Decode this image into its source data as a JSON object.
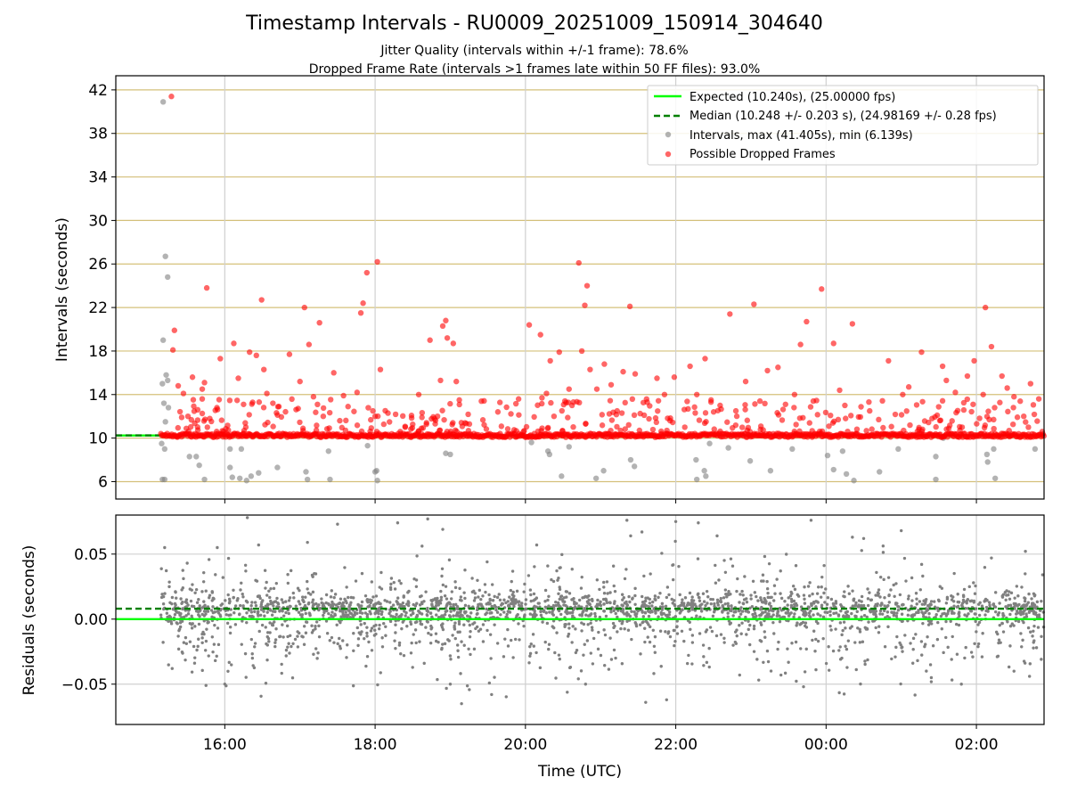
{
  "header": {
    "title": "Timestamp Intervals - RU0009_20251009_150914_304640",
    "subtitle1": "Jitter Quality (intervals within +/-1 frame): 78.6%",
    "subtitle2": "Dropped Frame Rate (intervals >1 frames late within 50 FF files): 93.0%"
  },
  "chart_data": [
    {
      "type": "scatter",
      "panel": "top",
      "ylabel": "Intervals (seconds)",
      "xlabel": "",
      "xlim_hours": [
        14.55,
        26.9
      ],
      "ylim": [
        4.4,
        43.3
      ],
      "yticks": [
        6,
        10,
        14,
        18,
        22,
        26,
        30,
        34,
        38,
        42
      ],
      "grid": true,
      "legend_position": "top-right",
      "legend": [
        "Expected (10.240s), (25.00000 fps)",
        "Median (10.248 +/- 0.203 s), (24.98169 +/- 0.28 fps)",
        "Intervals, max (41.405s), min (6.139s)",
        "Possible Dropped Frames"
      ],
      "expected_interval": 10.24,
      "median_interval": 10.248,
      "baseline_band": {
        "x_range": [
          15.15,
          26.9
        ],
        "y": 10.25,
        "color": "red"
      },
      "series": [
        {
          "name": "Intervals, max (41.405s), min (6.139s)",
          "color": "#808080",
          "points": [
            [
              15.18,
              40.9
            ],
            [
              15.21,
              26.7
            ],
            [
              15.24,
              24.8
            ],
            [
              15.18,
              19.0
            ],
            [
              15.22,
              15.8
            ],
            [
              15.17,
              15.0
            ],
            [
              15.24,
              15.3
            ],
            [
              15.19,
              13.2
            ],
            [
              15.25,
              12.8
            ],
            [
              15.21,
              11.5
            ],
            [
              15.16,
              9.5
            ],
            [
              15.2,
              9.0
            ],
            [
              15.17,
              6.2
            ],
            [
              15.2,
              6.2
            ],
            [
              15.53,
              8.3
            ],
            [
              15.62,
              8.3
            ],
            [
              15.66,
              7.5
            ],
            [
              15.73,
              6.2
            ],
            [
              16.07,
              7.3
            ],
            [
              16.1,
              6.4
            ],
            [
              16.2,
              6.3
            ],
            [
              16.29,
              6.1
            ],
            [
              16.35,
              6.5
            ],
            [
              16.45,
              6.8
            ],
            [
              16.07,
              9.0
            ],
            [
              16.22,
              9.0
            ],
            [
              16.7,
              7.3
            ],
            [
              17.08,
              6.9
            ],
            [
              17.1,
              6.2
            ],
            [
              17.4,
              6.2
            ],
            [
              17.38,
              8.8
            ],
            [
              17.9,
              9.3
            ],
            [
              18.02,
              7.0
            ],
            [
              18.03,
              6.1
            ],
            [
              18.0,
              6.9
            ],
            [
              18.94,
              8.6
            ],
            [
              19.0,
              8.5
            ],
            [
              20.08,
              9.6
            ],
            [
              20.3,
              8.8
            ],
            [
              20.32,
              8.5
            ],
            [
              20.48,
              6.5
            ],
            [
              20.58,
              9.2
            ],
            [
              20.94,
              6.3
            ],
            [
              21.04,
              7.0
            ],
            [
              21.4,
              8.0
            ],
            [
              21.45,
              7.4
            ],
            [
              22.27,
              8.0
            ],
            [
              22.28,
              6.2
            ],
            [
              22.38,
              7.0
            ],
            [
              22.4,
              6.5
            ],
            [
              22.45,
              9.5
            ],
            [
              22.7,
              9.1
            ],
            [
              22.99,
              7.9
            ],
            [
              23.26,
              7.0
            ],
            [
              23.55,
              9.0
            ],
            [
              24.02,
              8.4
            ],
            [
              24.1,
              7.1
            ],
            [
              24.22,
              8.8
            ],
            [
              24.27,
              6.7
            ],
            [
              24.37,
              6.1
            ],
            [
              24.71,
              6.9
            ],
            [
              24.96,
              9.0
            ],
            [
              25.46,
              8.3
            ],
            [
              25.46,
              6.2
            ],
            [
              25.56,
              10.0
            ],
            [
              26.14,
              8.5
            ],
            [
              26.23,
              9.0
            ],
            [
              26.25,
              6.3
            ],
            [
              26.15,
              7.8
            ],
            [
              26.78,
              9.0
            ]
          ]
        },
        {
          "name": "Possible Dropped Frames",
          "color": "#ff0000",
          "points": [
            [
              15.29,
              41.4
            ],
            [
              15.33,
              19.9
            ],
            [
              15.31,
              18.1
            ],
            [
              15.38,
              14.8
            ],
            [
              15.45,
              14.1
            ],
            [
              15.51,
              12.0
            ],
            [
              15.57,
              15.6
            ],
            [
              15.64,
              12.6
            ],
            [
              15.7,
              14.5
            ],
            [
              15.73,
              15.1
            ],
            [
              15.76,
              23.8
            ],
            [
              15.8,
              11.8
            ],
            [
              15.94,
              17.3
            ],
            [
              16.12,
              18.7
            ],
            [
              16.18,
              15.5
            ],
            [
              16.25,
              13.1
            ],
            [
              16.28,
              11.0
            ],
            [
              16.33,
              17.9
            ],
            [
              16.42,
              17.6
            ],
            [
              16.49,
              22.7
            ],
            [
              16.52,
              16.3
            ],
            [
              16.56,
              14.1
            ],
            [
              16.64,
              13.2
            ],
            [
              16.72,
              12.9
            ],
            [
              16.86,
              17.7
            ],
            [
              17.0,
              15.2
            ],
            [
              17.06,
              22.0
            ],
            [
              17.12,
              18.6
            ],
            [
              17.18,
              13.8
            ],
            [
              17.26,
              20.6
            ],
            [
              17.31,
              12.0
            ],
            [
              17.45,
              16.0
            ],
            [
              17.53,
              11.6
            ],
            [
              17.58,
              13.9
            ],
            [
              17.64,
              12.9
            ],
            [
              17.76,
              14.2
            ],
            [
              17.81,
              21.5
            ],
            [
              17.84,
              22.4
            ],
            [
              17.89,
              25.2
            ],
            [
              17.97,
              12.5
            ],
            [
              18.0,
              12.0
            ],
            [
              18.03,
              26.2
            ],
            [
              18.07,
              16.3
            ],
            [
              18.4,
              11.0
            ],
            [
              18.58,
              14.0
            ],
            [
              18.73,
              19.0
            ],
            [
              18.83,
              12.0
            ],
            [
              18.87,
              15.3
            ],
            [
              18.9,
              20.3
            ],
            [
              18.94,
              20.8
            ],
            [
              18.96,
              19.2
            ],
            [
              19.04,
              18.7
            ],
            [
              19.08,
              15.2
            ],
            [
              19.12,
              13.5
            ],
            [
              20.05,
              20.4
            ],
            [
              20.22,
              13.7
            ],
            [
              20.2,
              19.5
            ],
            [
              20.28,
              14.1
            ],
            [
              20.33,
              17.1
            ],
            [
              20.38,
              12.0
            ],
            [
              20.45,
              17.9
            ],
            [
              20.58,
              14.5
            ],
            [
              20.62,
              13.0
            ],
            [
              20.71,
              26.1
            ],
            [
              20.75,
              18.0
            ],
            [
              20.79,
              22.2
            ],
            [
              20.82,
              24.0
            ],
            [
              20.86,
              16.3
            ],
            [
              20.95,
              14.5
            ],
            [
              21.05,
              16.8
            ],
            [
              21.14,
              14.9
            ],
            [
              21.22,
              12.5
            ],
            [
              21.3,
              16.1
            ],
            [
              21.39,
              22.1
            ],
            [
              21.46,
              15.9
            ],
            [
              21.58,
              12.1
            ],
            [
              21.75,
              15.5
            ],
            [
              21.85,
              14.0
            ],
            [
              21.98,
              15.6
            ],
            [
              22.12,
              11.0
            ],
            [
              22.19,
              16.6
            ],
            [
              22.28,
              14.0
            ],
            [
              22.39,
              17.3
            ],
            [
              22.47,
              13.5
            ],
            [
              22.59,
              13.0
            ],
            [
              22.72,
              21.4
            ],
            [
              22.8,
              12.5
            ],
            [
              22.93,
              15.2
            ],
            [
              23.04,
              22.3
            ],
            [
              23.12,
              13.4
            ],
            [
              23.22,
              16.2
            ],
            [
              23.36,
              16.5
            ],
            [
              23.46,
              13.1
            ],
            [
              23.58,
              14.0
            ],
            [
              23.66,
              18.6
            ],
            [
              23.74,
              20.7
            ],
            [
              23.83,
              13.4
            ],
            [
              23.94,
              23.7
            ],
            [
              24.1,
              18.7
            ],
            [
              24.18,
              14.4
            ],
            [
              24.25,
              13.0
            ],
            [
              24.35,
              20.5
            ],
            [
              24.58,
              12.5
            ],
            [
              24.7,
              11.7
            ],
            [
              24.83,
              17.1
            ],
            [
              25.02,
              14.0
            ],
            [
              25.1,
              14.7
            ],
            [
              25.27,
              17.9
            ],
            [
              25.41,
              11.8
            ],
            [
              25.55,
              16.6
            ],
            [
              25.6,
              15.3
            ],
            [
              25.72,
              14.2
            ],
            [
              25.81,
              11.0
            ],
            [
              25.88,
              15.7
            ],
            [
              25.97,
              17.1
            ],
            [
              26.09,
              14.0
            ],
            [
              26.12,
              22.0
            ],
            [
              26.2,
              18.4
            ],
            [
              26.34,
              15.7
            ],
            [
              26.41,
              14.6
            ],
            [
              26.5,
              13.8
            ],
            [
              26.63,
              12.0
            ],
            [
              26.72,
              15.0
            ],
            [
              26.83,
              13.6
            ]
          ]
        }
      ]
    },
    {
      "type": "scatter",
      "panel": "bottom",
      "ylabel": "Residuals (seconds)",
      "xlabel": "Time (UTC)",
      "xlim_hours": [
        14.55,
        26.9
      ],
      "ylim": [
        -0.081,
        0.08
      ],
      "yticks": [
        0.05,
        0.0,
        -0.05
      ],
      "ytick_labels": [
        "0.05",
        "0.00",
        "−0.05"
      ],
      "xticks_hours": [
        16,
        18,
        20,
        22,
        24,
        26
      ],
      "xtick_labels": [
        "16:00",
        "18:00",
        "20:00",
        "22:00",
        "00:00",
        "02:00"
      ],
      "grid": true,
      "expected_residual": 0.0,
      "median_residual": 0.008,
      "series": [
        {
          "name": "Residuals",
          "color": "#808080",
          "x_range_hours": [
            15.15,
            26.9
          ],
          "points": [
            [
              15.2,
              0.055
            ],
            [
              15.3,
              -0.038
            ],
            [
              15.5,
              0.043
            ],
            [
              15.75,
              -0.051
            ],
            [
              15.9,
              0.055
            ],
            [
              16.3,
              0.078
            ],
            [
              16.45,
              0.057
            ],
            [
              17.1,
              0.059
            ],
            [
              17.5,
              0.073
            ],
            [
              18.3,
              0.074
            ],
            [
              18.7,
              0.077
            ],
            [
              18.9,
              0.069
            ],
            [
              19.0,
              -0.05
            ],
            [
              19.15,
              -0.065
            ],
            [
              19.55,
              -0.058
            ],
            [
              20.15,
              0.057
            ],
            [
              20.8,
              -0.05
            ],
            [
              21.2,
              -0.03
            ],
            [
              21.35,
              0.076
            ],
            [
              21.4,
              0.064
            ],
            [
              21.55,
              0.067
            ],
            [
              21.6,
              -0.064
            ],
            [
              22.0,
              0.075
            ],
            [
              22.3,
              0.074
            ],
            [
              22.55,
              0.064
            ],
            [
              22.85,
              -0.043
            ],
            [
              23.4,
              -0.043
            ],
            [
              23.7,
              -0.052
            ],
            [
              23.8,
              0.076
            ],
            [
              24.35,
              0.063
            ],
            [
              24.5,
              0.062
            ],
            [
              25.0,
              0.068
            ],
            [
              25.4,
              -0.045
            ],
            [
              25.8,
              -0.05
            ],
            [
              26.2,
              0.047
            ],
            [
              26.5,
              -0.04
            ],
            [
              26.8,
              -0.022
            ]
          ]
        }
      ]
    }
  ]
}
